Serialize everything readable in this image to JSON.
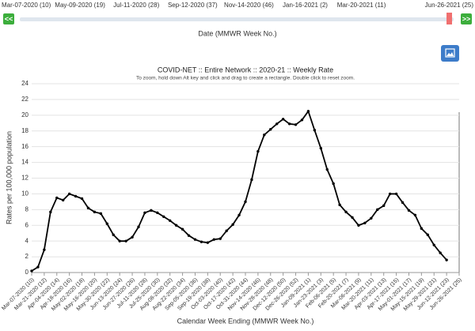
{
  "slider": {
    "labels": [
      "Mar-07-2020 (10)",
      "May-09-2020 (19)",
      "Jul-11-2020 (28)",
      "Sep-12-2020 (37)",
      "Nov-14-2020 (46)",
      "Jan-16-2021 (2)",
      "Mar-20-2021 (11)",
      "Jun-26-2021 (25)"
    ],
    "title": "Date (MMWR Week No.)",
    "prev_button": "<<",
    "next_button": ">>"
  },
  "chart_data": {
    "type": "line",
    "title": "COVID-NET :: Entire Network :: 2020-21 :: Weekly Rate",
    "subtitle": "To zoom, hold down Alt key and click and drag to create a rectangle. Double click to reset zoom.",
    "x_label": "Calendar Week Ending (MMWR Week No.)",
    "y_label": "Rates per 100,000 population",
    "categories": [
      "Mar-07-2020 (10)",
      null,
      "Mar-21-2020 (12)",
      null,
      "Apr-04-2020 (14)",
      null,
      "Apr-18-2020 (16)",
      null,
      "May-02-2020 (18)",
      null,
      "May-16-2020 (20)",
      null,
      "May-30-2020 (22)",
      null,
      "Jun-13-2020 (24)",
      null,
      "Jun-27-2020 (26)",
      null,
      "Jul-11-2020 (28)",
      null,
      "Jul-25-2020 (30)",
      null,
      "Aug-08-2020 (32)",
      null,
      "Aug-22-2020 (34)",
      null,
      "Sep-05-2020 (36)",
      null,
      "Sep-19-2020 (38)",
      null,
      "Oct-03-2020 (40)",
      null,
      "Oct-17-2020 (42)",
      null,
      "Oct-31-2020 (44)",
      null,
      "Nov-14-2020 (46)",
      null,
      "Nov-28-2020 (48)",
      null,
      "Dec-12-2020 (50)",
      null,
      "Dec-26-2020 (52)",
      null,
      "Jan-09-2021 (1)",
      null,
      "Jan-23-2021 (3)",
      null,
      "Feb-06-2021 (5)",
      null,
      "Feb-20-2021 (7)",
      null,
      "Mar-06-2021 (9)",
      null,
      "Mar-20-2021 (11)",
      null,
      "Apr-03-2021 (13)",
      null,
      "Apr-17-2021 (15)",
      null,
      "May-01-2021 (17)",
      null,
      "May-15-2021 (19)",
      null,
      "May-29-2021 (21)",
      null,
      "Jun-12-2021 (23)",
      null,
      "Jun-26-2021 (25)"
    ],
    "values": [
      0.2,
      0.7,
      2.9,
      7.7,
      9.5,
      9.2,
      10.0,
      9.7,
      9.4,
      8.2,
      7.7,
      7.5,
      6.2,
      4.8,
      4.0,
      4.0,
      4.5,
      5.8,
      7.6,
      7.9,
      7.6,
      7.1,
      6.6,
      6.0,
      5.5,
      4.7,
      4.2,
      3.9,
      3.8,
      4.2,
      4.3,
      5.3,
      6.1,
      7.3,
      9.0,
      11.8,
      15.4,
      17.5,
      18.2,
      18.9,
      19.5,
      18.9,
      18.8,
      19.4,
      20.5,
      18.1,
      15.8,
      13.1,
      11.3,
      8.6,
      7.7,
      7.0,
      6.0,
      6.3,
      6.9,
      8.0,
      8.5,
      10.0,
      10.0,
      8.9,
      7.9,
      7.3,
      5.6,
      4.8,
      3.5,
      2.5,
      1.6,
      null,
      null
    ],
    "color": "#000000",
    "ylim": [
      0,
      24
    ],
    "yticks": [
      0,
      2,
      4,
      6,
      8,
      10,
      12,
      14,
      16,
      18,
      20,
      22,
      24
    ],
    "grid": true
  }
}
